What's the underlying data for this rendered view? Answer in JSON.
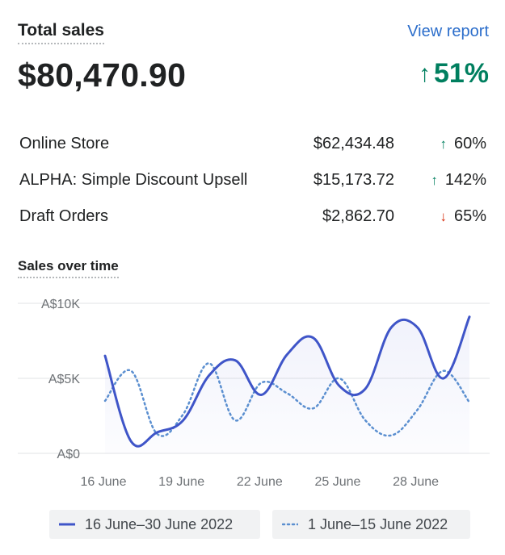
{
  "header": {
    "title": "Total sales",
    "view_report": "View report",
    "total": "$80,470.90",
    "change_arrow": "↑",
    "change": "51%"
  },
  "breakdown": [
    {
      "name": "Online Store",
      "amount": "$62,434.48",
      "arrow": "↑",
      "change": "60%",
      "direction": "up"
    },
    {
      "name": "ALPHA: Simple Discount Upsell",
      "amount": "$15,173.72",
      "arrow": "↑",
      "change": "142%",
      "direction": "up"
    },
    {
      "name": "Draft Orders",
      "amount": "$2,862.70",
      "arrow": "↓",
      "change": "65%",
      "direction": "down"
    }
  ],
  "colors": {
    "accent": "#2c6ecb",
    "positive": "#007f5f",
    "negative": "#d72c0d",
    "series_current": "#3f55c8",
    "series_previous": "#5b8fd0"
  },
  "chart_data": {
    "type": "line",
    "title": "Sales over time",
    "x": [
      16,
      17,
      18,
      19,
      20,
      21,
      22,
      23,
      24,
      25,
      26,
      27,
      28,
      29,
      30
    ],
    "x_tick_labels": [
      "16 June",
      "19 June",
      "22 June",
      "25 June",
      "28 June"
    ],
    "x_tick_values": [
      16,
      19,
      22,
      25,
      28
    ],
    "y_tick_labels": [
      "A$0",
      "A$5K",
      "A$10K"
    ],
    "y_tick_values": [
      0,
      5000,
      10000
    ],
    "ylim": [
      0,
      10000
    ],
    "grid": true,
    "legend_position": "bottom",
    "series": [
      {
        "name": "16 June–30 June 2022",
        "style": "solid",
        "values": [
          6500,
          800,
          1400,
          2200,
          5200,
          6200,
          3900,
          6600,
          7700,
          4500,
          4300,
          8400,
          8400,
          5000,
          9100
        ]
      },
      {
        "name": "1 June–15 June 2022",
        "style": "dotted",
        "values": [
          3500,
          5500,
          1300,
          2600,
          6000,
          2200,
          4700,
          4000,
          3000,
          5000,
          2200,
          1200,
          2900,
          5500,
          3400
        ]
      }
    ]
  }
}
